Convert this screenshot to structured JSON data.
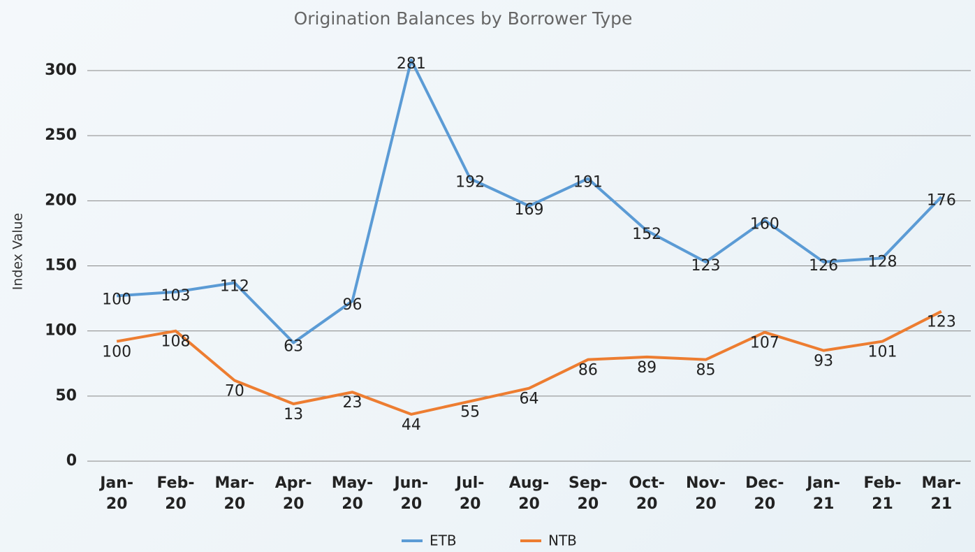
{
  "chart_data": {
    "type": "line",
    "title": "Origination Balances by Borrower Type",
    "y_label": "Index Value",
    "categories": [
      "Jan-20",
      "Feb-20",
      "Mar-20",
      "Apr-20",
      "May-20",
      "Jun-20",
      "Jul-20",
      "Aug-20",
      "Sep-20",
      "Oct-20",
      "Nov-20",
      "Dec-20",
      "Jan-21",
      "Feb-21",
      "Mar-21"
    ],
    "series": [
      {
        "name": "ETB",
        "color": "#5b9bd5",
        "values": [
          127,
          130,
          137,
          91,
          123,
          308,
          217,
          196,
          217,
          177,
          153,
          185,
          153,
          156,
          203
        ],
        "point_labels": [
          100,
          103,
          112,
          63,
          96,
          281,
          192,
          169,
          191,
          152,
          123,
          160,
          126,
          128,
          176
        ]
      },
      {
        "name": "NTB",
        "color": "#ed7d31",
        "values": [
          92,
          100,
          62,
          44,
          53,
          36,
          46,
          56,
          78,
          80,
          78,
          99,
          85,
          92,
          115
        ],
        "point_labels": [
          100,
          108,
          70,
          13,
          23,
          44,
          55,
          64,
          86,
          89,
          85,
          107,
          93,
          101,
          123
        ]
      }
    ],
    "ylim": [
      0,
      300
    ],
    "yticks": [
      0,
      50,
      100,
      150,
      200,
      250,
      300
    ],
    "grid": true,
    "legend": "bottom"
  }
}
